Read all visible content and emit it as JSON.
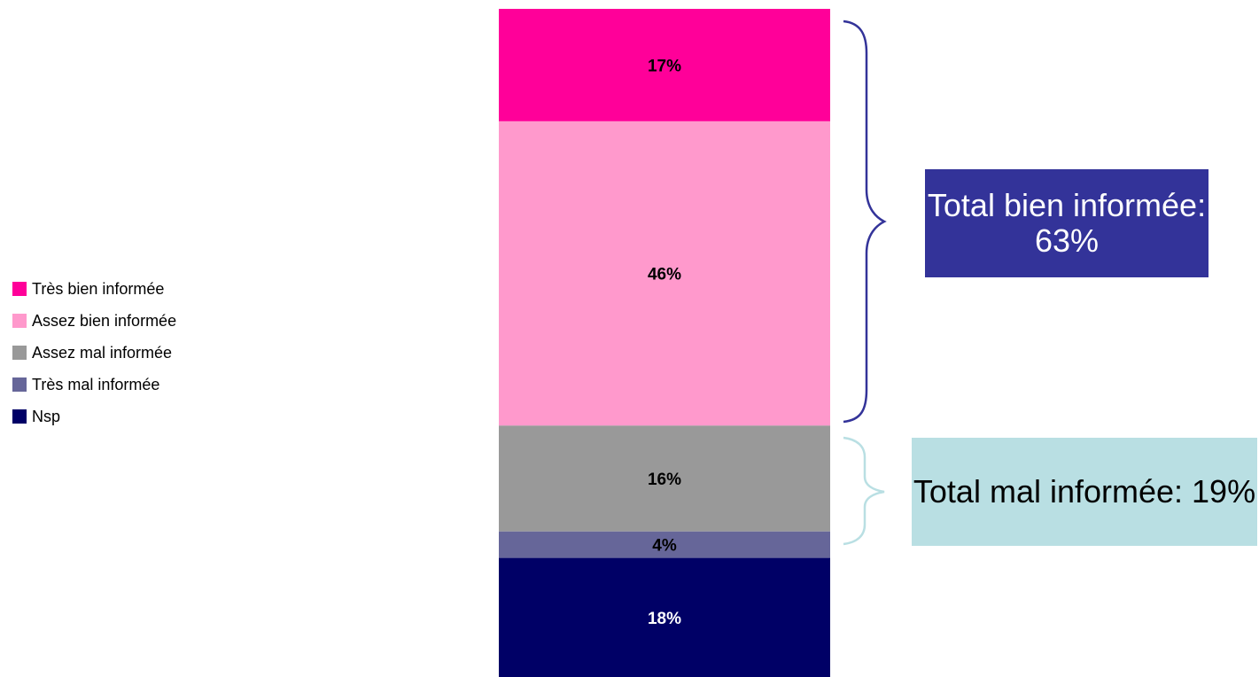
{
  "chart_data": {
    "type": "bar",
    "stacked": true,
    "categories": [
      ""
    ],
    "series": [
      {
        "name": "Très bien informée",
        "values": [
          17
        ],
        "label": "17%",
        "color": "#ff0099"
      },
      {
        "name": "Assez bien informée",
        "values": [
          46
        ],
        "label": "46%",
        "color": "#ff99cc"
      },
      {
        "name": "Assez mal informée",
        "values": [
          16
        ],
        "label": "16%",
        "color": "#999999"
      },
      {
        "name": "Très mal informée",
        "values": [
          4
        ],
        "label": "4%",
        "color": "#666699"
      },
      {
        "name": "Nsp",
        "values": [
          18
        ],
        "label": "18%",
        "color": "#000066"
      }
    ],
    "legend_position": "left",
    "grid": false,
    "annotations": [
      {
        "text": "Total bien informée: 63%",
        "groups": [
          "Très bien informée",
          "Assez bien informée"
        ],
        "box_color": "#333399",
        "text_color": "#ffffff",
        "brace_color": "#333399"
      },
      {
        "text": "Total mal informée: 19%",
        "groups": [
          "Assez mal informée",
          "Très mal informée"
        ],
        "box_color": "#b9dfe3",
        "text_color": "#000000",
        "brace_color": "#b9dfe3"
      }
    ]
  },
  "legend": {
    "items": [
      {
        "label": "Très bien informée",
        "color": "#ff0099"
      },
      {
        "label": "Assez bien informée",
        "color": "#ff99cc"
      },
      {
        "label": "Assez mal informée",
        "color": "#999999"
      },
      {
        "label": "Très mal informée",
        "color": "#666699"
      },
      {
        "label": "Nsp",
        "color": "#000066"
      }
    ]
  }
}
